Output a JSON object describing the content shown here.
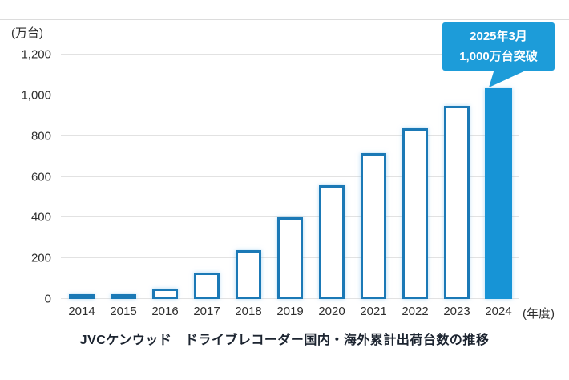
{
  "chart_data": {
    "type": "bar",
    "title": "JVCケンウッド　ドライブレコーダー国内・海外累計出荷台数の推移",
    "unit_label": "(万台)",
    "xlabel": "(年度)",
    "categories": [
      "2014",
      "2015",
      "2016",
      "2017",
      "2018",
      "2019",
      "2020",
      "2021",
      "2022",
      "2023",
      "2024"
    ],
    "values": [
      5,
      15,
      50,
      130,
      240,
      400,
      560,
      715,
      840,
      950,
      1035
    ],
    "ylim": [
      0,
      1200
    ],
    "ytick_values": [
      0,
      200,
      400,
      600,
      800,
      1000,
      1200
    ],
    "ytick_labels": [
      "0",
      "200",
      "400",
      "600",
      "800",
      "1,000",
      "1,200"
    ],
    "grid": true,
    "legend": "none",
    "highlight_index": 10,
    "annotation": {
      "line1": "2025年3月",
      "line2": "1,000万台突破",
      "target_category": "2024"
    },
    "colors": {
      "bar_outline": "#1b79b6",
      "bar_fill": "#ffffff",
      "bar_glow": "rgba(120,190,235,0.55)",
      "highlight_fill": "#1794d6",
      "callout_bg": "#1d9cd9",
      "callout_text": "#ffffff",
      "gridline": "#e2e2e2",
      "axis_text": "#2e2e2e",
      "title_text": "#1c2430"
    }
  }
}
